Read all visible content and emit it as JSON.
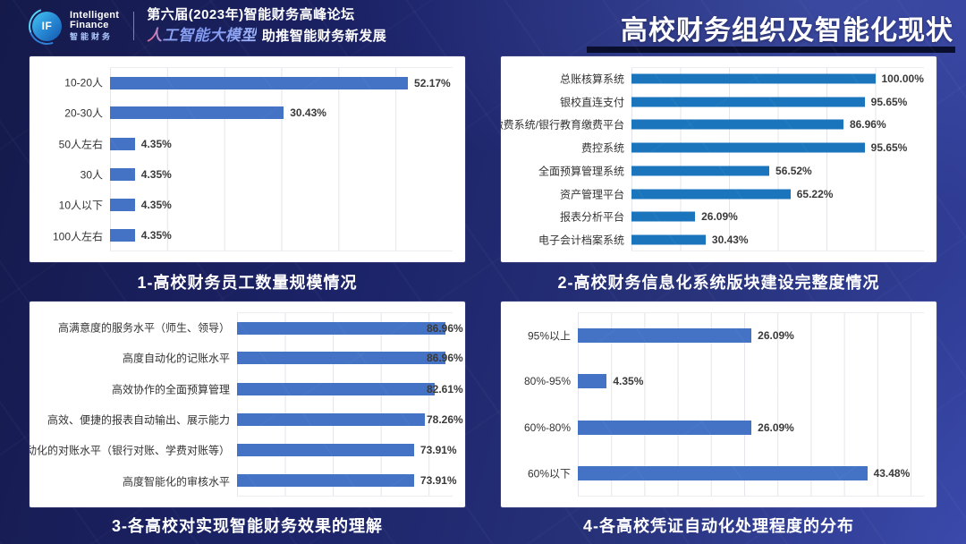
{
  "header": {
    "logo": {
      "badge": "IF",
      "line1": "Intelligent",
      "line2": "Finance",
      "cn": "智能财务"
    },
    "event_line1": "第六届(2023年)智能财务高峰论坛",
    "event_line2_stylized": "人工智能大模型",
    "event_line2_rest": "助推智能财务新发展",
    "page_title": "高校财务组织及智能化现状"
  },
  "colors": {
    "background_navy": "#1c2368",
    "panel": "#ffffff",
    "bar_blue": "#4472c4",
    "bar_azure": "#1b75bc",
    "title_underline": "#0a0e2d",
    "caption_text": "#ffffff"
  },
  "chart_data": [
    {
      "type": "bar",
      "orientation": "horizontal",
      "caption": "1-高校财务员工数量规模情况",
      "categories": [
        "10-20人",
        "20-30人",
        "50人左右",
        "30人",
        "10人以下",
        "100人左右"
      ],
      "values": [
        52.17,
        30.43,
        4.35,
        4.35,
        4.35,
        4.35
      ],
      "value_labels": [
        "52.17%",
        "30.43%",
        "4.35%",
        "4.35%",
        "4.35%",
        "4.35%"
      ],
      "xlim": [
        0,
        60
      ],
      "grid_step": 10,
      "grid": true,
      "legend": false,
      "bar_color": "#4472c4"
    },
    {
      "type": "bar",
      "orientation": "horizontal",
      "caption": "2-高校财务信息化系统版块建设完整度情况",
      "categories": [
        "总账核算系统",
        "银校直连支付",
        "缴费系统/银行教育缴费平台",
        "费控系统",
        "全面预算管理系统",
        "资产管理平台",
        "报表分析平台",
        "电子会计档案系统"
      ],
      "values": [
        100.0,
        95.65,
        86.96,
        95.65,
        56.52,
        65.22,
        26.09,
        30.43
      ],
      "value_labels": [
        "100.00%",
        "95.65%",
        "86.96%",
        "95.65%",
        "56.52%",
        "65.22%",
        "26.09%",
        "30.43%"
      ],
      "xlim": [
        0,
        120
      ],
      "grid_step": 20,
      "grid": true,
      "legend": false,
      "bar_color": "#1b75bc"
    },
    {
      "type": "bar",
      "orientation": "horizontal",
      "caption": "3-各高校对实现智能财务效果的理解",
      "categories": [
        "高满意度的服务水平（师生、领导）",
        "高度自动化的记账水平",
        "高效协作的全面预算管理",
        "高效、便捷的报表自动输出、展示能力",
        "高度自动化的对账水平（银行对账、学费对账等）",
        "高度智能化的审核水平"
      ],
      "values": [
        86.96,
        86.96,
        82.61,
        78.26,
        73.91,
        73.91
      ],
      "value_labels": [
        "86.96%",
        "86.96%",
        "82.61%",
        "78.26%",
        "73.91%",
        "73.91%"
      ],
      "xlim": [
        0,
        90
      ],
      "grid_step": 20,
      "grid": true,
      "legend": false,
      "bar_color": "#4472c4"
    },
    {
      "type": "bar",
      "orientation": "horizontal",
      "caption": "4-各高校凭证自动化处理程度的分布",
      "categories": [
        "95%以上",
        "80%-95%",
        "60%-80%",
        "60%以下"
      ],
      "values": [
        26.09,
        4.35,
        26.09,
        43.48
      ],
      "value_labels": [
        "26.09%",
        "4.35%",
        "26.09%",
        "43.48%"
      ],
      "xlim": [
        0,
        52
      ],
      "grid_step": 5,
      "grid": true,
      "legend": false,
      "bar_color": "#4472c4"
    }
  ]
}
